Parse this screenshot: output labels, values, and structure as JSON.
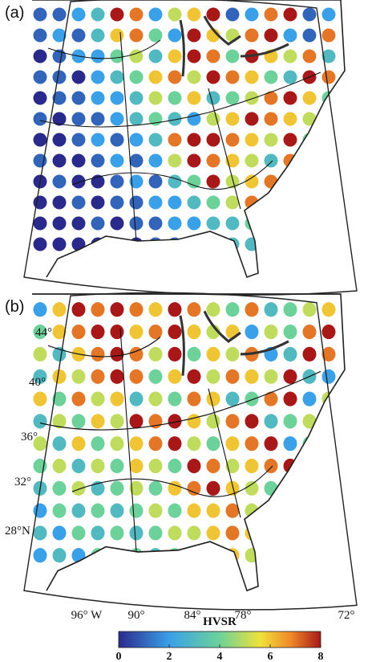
{
  "panels": [
    {
      "label": "(a)",
      "hvsr": [
        [
          1,
          1,
          2,
          3,
          8,
          7,
          2,
          5,
          6,
          8,
          1,
          2,
          7,
          8,
          1,
          2
        ],
        [
          1,
          2,
          1,
          3,
          6,
          7,
          4,
          2,
          8,
          6,
          5,
          7,
          8,
          2,
          1,
          7
        ],
        [
          0,
          1,
          2,
          2,
          4,
          5,
          3,
          6,
          8,
          7,
          4,
          8,
          6,
          5,
          7,
          3
        ],
        [
          1,
          1,
          0,
          2,
          3,
          4,
          6,
          7,
          5,
          8,
          7,
          6,
          4,
          3,
          8,
          7
        ],
        [
          0,
          1,
          1,
          2,
          2,
          3,
          5,
          4,
          6,
          3,
          4,
          5,
          7,
          8,
          6,
          4
        ],
        [
          1,
          0,
          1,
          1,
          2,
          3,
          4,
          3,
          2,
          5,
          6,
          8,
          7,
          6,
          5,
          7
        ],
        [
          0,
          0,
          1,
          2,
          1,
          2,
          3,
          7,
          8,
          8,
          7,
          6,
          5,
          8,
          4,
          6
        ],
        [
          1,
          0,
          0,
          1,
          2,
          1,
          2,
          5,
          8,
          7,
          6,
          5,
          3,
          7,
          8,
          5
        ],
        [
          0,
          1,
          0,
          0,
          1,
          2,
          1,
          3,
          4,
          8,
          5,
          6,
          7,
          2,
          3,
          4
        ],
        [
          0,
          0,
          1,
          0,
          1,
          1,
          2,
          2,
          3,
          4,
          5,
          7,
          8,
          6,
          2,
          3
        ],
        [
          0,
          0,
          0,
          1,
          0,
          1,
          1,
          2,
          2,
          3,
          3,
          4,
          6,
          3,
          2,
          3
        ],
        [
          0,
          0,
          0,
          0,
          1,
          0,
          1,
          1,
          2,
          2,
          3,
          3,
          2,
          4,
          3,
          2
        ]
      ]
    },
    {
      "label": "(b)",
      "hvsr": [
        [
          2,
          6,
          8,
          7,
          8,
          7,
          6,
          8,
          7,
          5,
          4,
          7,
          3,
          4,
          5,
          6
        ],
        [
          4,
          6,
          7,
          8,
          8,
          6,
          7,
          8,
          6,
          5,
          6,
          2,
          5,
          4,
          7,
          8
        ],
        [
          5,
          3,
          6,
          7,
          8,
          7,
          5,
          8,
          4,
          6,
          5,
          7,
          2,
          3,
          8,
          7
        ],
        [
          3,
          6,
          5,
          7,
          8,
          7,
          4,
          6,
          8,
          5,
          7,
          6,
          5,
          8,
          3,
          2
        ],
        [
          6,
          4,
          7,
          5,
          6,
          3,
          5,
          4,
          7,
          6,
          3,
          4,
          7,
          8,
          2,
          5
        ],
        [
          3,
          5,
          4,
          6,
          5,
          8,
          7,
          8,
          6,
          5,
          7,
          8,
          3,
          4,
          5,
          2
        ],
        [
          5,
          3,
          6,
          4,
          5,
          6,
          7,
          8,
          5,
          4,
          6,
          7,
          8,
          2,
          4,
          3
        ],
        [
          4,
          5,
          3,
          5,
          4,
          6,
          5,
          4,
          8,
          7,
          5,
          6,
          7,
          8,
          2,
          3
        ],
        [
          3,
          4,
          5,
          3,
          4,
          5,
          4,
          6,
          7,
          8,
          6,
          5,
          4,
          7,
          3,
          2
        ],
        [
          2,
          4,
          3,
          4,
          3,
          4,
          5,
          4,
          6,
          6,
          7,
          5,
          7,
          8,
          3,
          4
        ],
        [
          3,
          2,
          4,
          3,
          4,
          3,
          4,
          5,
          5,
          6,
          7,
          6,
          4,
          5,
          4,
          3
        ],
        [
          2,
          3,
          2,
          4,
          3,
          4,
          3,
          4,
          5,
          5,
          6,
          5,
          4,
          3,
          5,
          4
        ]
      ],
      "lat_labels": [
        "44°",
        "40°",
        "36°",
        "32°",
        "28°N"
      ],
      "lon_labels": [
        "96° W",
        "90°",
        "84°",
        "78°",
        "72°"
      ]
    }
  ],
  "colorbar": {
    "title": "HVSR",
    "range": [
      0,
      8
    ],
    "ticks": [
      0,
      2,
      4,
      6,
      8
    ]
  }
}
